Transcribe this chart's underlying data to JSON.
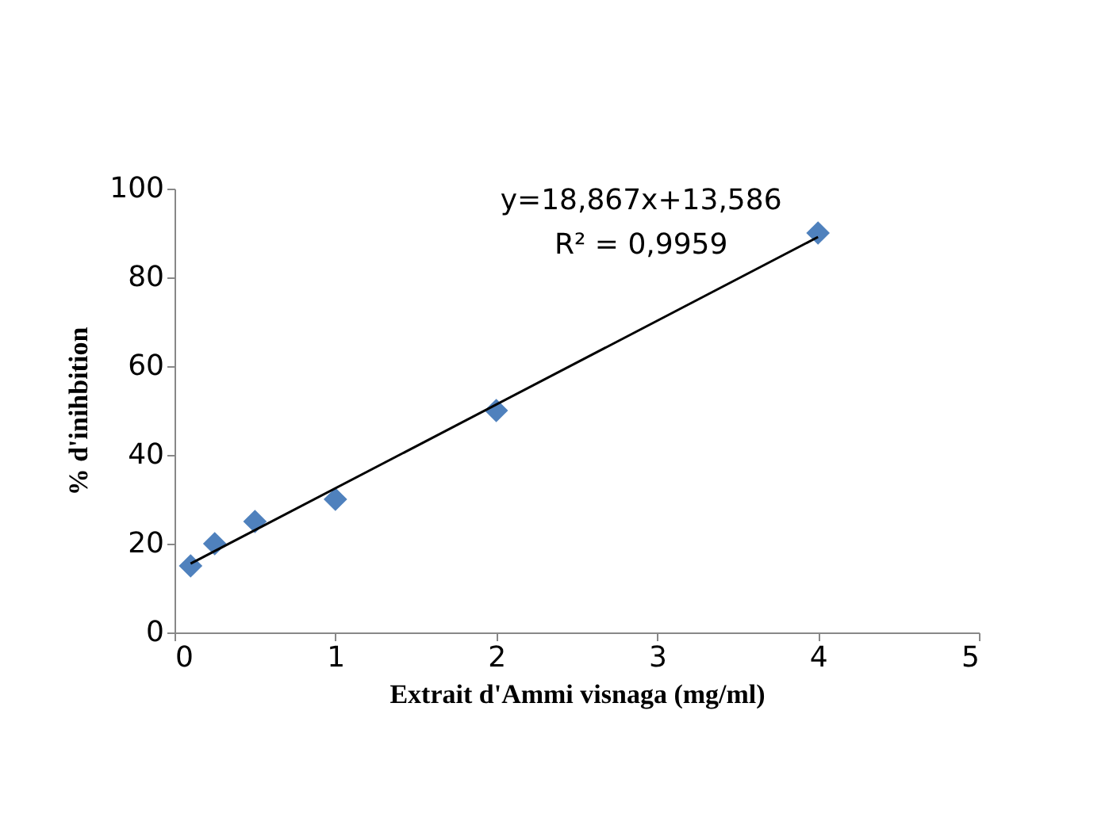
{
  "chart_data": {
    "type": "scatter",
    "xlabel": "Extrait d'Ammi visnaga (mg/ml)",
    "ylabel": "% d'inihbition",
    "x": [
      0.1,
      0.25,
      0.5,
      1,
      2,
      4
    ],
    "marker": "diamond",
    "grid": false,
    "series": [
      {
        "color": "#4f81bd",
        "values": [
          15,
          20,
          25,
          30,
          50,
          90
        ]
      },
      {
        "type": "line",
        "color": "#000000",
        "x": [
          0.1,
          4
        ],
        "values": [
          15.5,
          89.1
        ],
        "line_style": "solid",
        "marker": "none"
      }
    ],
    "xlim": [
      0,
      5
    ],
    "xticks": [
      0,
      1,
      2,
      3,
      4,
      5
    ],
    "ylim": [
      0,
      100
    ],
    "yticks": [
      0,
      20,
      40,
      60,
      80,
      100
    ],
    "annotations": [
      "y=18,867x+13,586",
      "R² = 0,9959"
    ]
  }
}
